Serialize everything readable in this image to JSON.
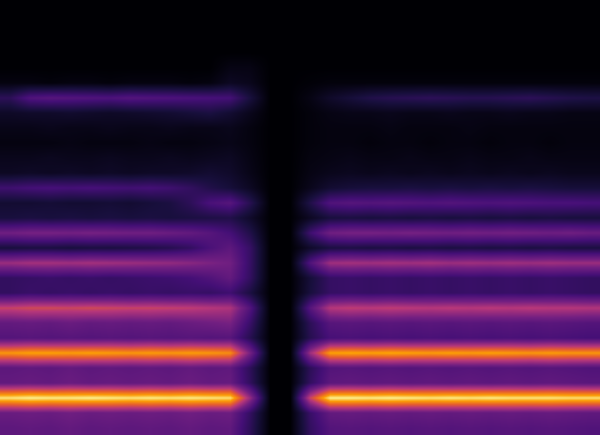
{
  "chart_data": {
    "type": "heatmap",
    "tick_labels": false,
    "color_range": [
      0,
      100
    ],
    "cells": [
      [
        0,
        0,
        0,
        0,
        0,
        0,
        0,
        0,
        0,
        0,
        0,
        0,
        0,
        0,
        0,
        0,
        0,
        0,
        0,
        0,
        0,
        0,
        0,
        0,
        0,
        0,
        0,
        0,
        0,
        0
      ],
      [
        0,
        0,
        0,
        0,
        0,
        0,
        0,
        0,
        0,
        0,
        0,
        0,
        0,
        0,
        0,
        0,
        0,
        0,
        0,
        0,
        0,
        0,
        0,
        0,
        0,
        0,
        0,
        0,
        0,
        0
      ],
      [
        0,
        0,
        0,
        0,
        0,
        0,
        0,
        0,
        0,
        0,
        0,
        0,
        0,
        0,
        0,
        0,
        0,
        0,
        0,
        0,
        0,
        0,
        0,
        0,
        0,
        0,
        0,
        0,
        0,
        0
      ],
      [
        0,
        0,
        0,
        0,
        0,
        0,
        0,
        0,
        0,
        0,
        0,
        0,
        0,
        0,
        0,
        0,
        0,
        0,
        0,
        0,
        0,
        0,
        0,
        0,
        0,
        0,
        0,
        0,
        0,
        0
      ],
      [
        0,
        0,
        0,
        0,
        0,
        0,
        0,
        0,
        0,
        0,
        0,
        4,
        4,
        0,
        0,
        0,
        0,
        0,
        0,
        0,
        0,
        0,
        0,
        0,
        0,
        0,
        0,
        0,
        0,
        0
      ],
      [
        3,
        3,
        2,
        3,
        3,
        2,
        3,
        3,
        3,
        2,
        3,
        8,
        6,
        0,
        0,
        1,
        2,
        2,
        2,
        2,
        2,
        2,
        2,
        2,
        2,
        2,
        2,
        2,
        2,
        2
      ],
      [
        22,
        34,
        36,
        35,
        34,
        33,
        35,
        34,
        33,
        32,
        31,
        30,
        15,
        0,
        0,
        4,
        10,
        14,
        18,
        20,
        21,
        22,
        21,
        20,
        20,
        21,
        22,
        20,
        18,
        17
      ],
      [
        9,
        10,
        10,
        11,
        10,
        9,
        10,
        11,
        12,
        14,
        16,
        12,
        6,
        0,
        0,
        2,
        4,
        5,
        5,
        6,
        5,
        5,
        6,
        5,
        5,
        6,
        5,
        5,
        4,
        4
      ],
      [
        5,
        5,
        6,
        5,
        5,
        6,
        5,
        5,
        6,
        5,
        5,
        6,
        3,
        0,
        0,
        2,
        3,
        3,
        3,
        4,
        3,
        3,
        3,
        4,
        3,
        3,
        3,
        3,
        3,
        3
      ],
      [
        3,
        3,
        3,
        4,
        3,
        3,
        3,
        4,
        3,
        3,
        4,
        5,
        3,
        0,
        0,
        2,
        3,
        3,
        2,
        3,
        3,
        2,
        3,
        3,
        2,
        3,
        3,
        2,
        3,
        3
      ],
      [
        6,
        6,
        7,
        6,
        6,
        7,
        6,
        6,
        7,
        6,
        7,
        8,
        4,
        0,
        0,
        3,
        4,
        5,
        4,
        4,
        5,
        4,
        4,
        5,
        4,
        4,
        5,
        4,
        4,
        4
      ],
      [
        8,
        9,
        8,
        9,
        8,
        9,
        8,
        9,
        9,
        10,
        12,
        10,
        5,
        0,
        0,
        4,
        6,
        7,
        6,
        7,
        6,
        7,
        6,
        7,
        6,
        7,
        6,
        7,
        6,
        6
      ],
      [
        28,
        30,
        31,
        30,
        31,
        30,
        29,
        30,
        28,
        24,
        18,
        14,
        8,
        0,
        0,
        6,
        12,
        14,
        15,
        15,
        16,
        15,
        16,
        15,
        16,
        15,
        16,
        15,
        14,
        14
      ],
      [
        12,
        12,
        13,
        12,
        12,
        13,
        12,
        14,
        16,
        22,
        32,
        36,
        20,
        0,
        0,
        18,
        34,
        36,
        35,
        36,
        35,
        34,
        35,
        34,
        33,
        34,
        33,
        32,
        32,
        31
      ],
      [
        15,
        16,
        15,
        16,
        15,
        16,
        15,
        16,
        15,
        16,
        17,
        18,
        10,
        0,
        0,
        8,
        15,
        16,
        15,
        16,
        15,
        16,
        15,
        16,
        15,
        16,
        15,
        16,
        15,
        15
      ],
      [
        44,
        46,
        46,
        45,
        46,
        45,
        44,
        44,
        42,
        40,
        36,
        30,
        18,
        0,
        0,
        28,
        44,
        46,
        46,
        45,
        46,
        45,
        44,
        45,
        44,
        45,
        44,
        43,
        44,
        42
      ],
      [
        15,
        16,
        16,
        15,
        16,
        16,
        17,
        18,
        20,
        24,
        32,
        38,
        25,
        0,
        0,
        10,
        16,
        17,
        16,
        17,
        16,
        17,
        16,
        17,
        16,
        17,
        16,
        17,
        16,
        16
      ],
      [
        54,
        56,
        56,
        55,
        56,
        55,
        54,
        53,
        52,
        50,
        47,
        44,
        25,
        0,
        0,
        34,
        55,
        56,
        55,
        56,
        55,
        56,
        54,
        55,
        54,
        55,
        54,
        55,
        54,
        54
      ],
      [
        24,
        25,
        26,
        25,
        26,
        25,
        26,
        27,
        28,
        30,
        34,
        40,
        24,
        0,
        0,
        14,
        25,
        26,
        25,
        26,
        25,
        26,
        25,
        26,
        25,
        26,
        25,
        26,
        25,
        24
      ],
      [
        24,
        26,
        25,
        26,
        25,
        26,
        25,
        26,
        25,
        26,
        25,
        28,
        16,
        0,
        0,
        15,
        25,
        26,
        25,
        26,
        25,
        26,
        25,
        26,
        25,
        26,
        25,
        26,
        25,
        24
      ],
      [
        64,
        66,
        66,
        65,
        66,
        65,
        64,
        64,
        63,
        62,
        60,
        58,
        34,
        0,
        0,
        36,
        60,
        62,
        61,
        62,
        61,
        60,
        61,
        60,
        61,
        60,
        61,
        60,
        60,
        59
      ],
      [
        40,
        41,
        40,
        42,
        40,
        41,
        40,
        41,
        40,
        42,
        44,
        46,
        26,
        0,
        0,
        22,
        36,
        37,
        36,
        37,
        36,
        37,
        36,
        37,
        36,
        37,
        36,
        37,
        36,
        35
      ],
      [
        35,
        36,
        35,
        36,
        35,
        36,
        35,
        36,
        35,
        36,
        35,
        36,
        20,
        0,
        0,
        20,
        31,
        32,
        31,
        32,
        31,
        32,
        31,
        32,
        31,
        32,
        31,
        32,
        31,
        30
      ],
      [
        84,
        86,
        86,
        85,
        86,
        85,
        84,
        85,
        84,
        85,
        84,
        82,
        45,
        0,
        0,
        55,
        86,
        87,
        86,
        87,
        86,
        85,
        86,
        85,
        86,
        85,
        84,
        85,
        84,
        84
      ],
      [
        38,
        39,
        38,
        40,
        38,
        39,
        38,
        39,
        38,
        40,
        38,
        39,
        22,
        0,
        0,
        22,
        35,
        36,
        35,
        36,
        35,
        36,
        35,
        36,
        35,
        36,
        35,
        36,
        35,
        34
      ],
      [
        40,
        41,
        40,
        42,
        40,
        41,
        40,
        41,
        40,
        42,
        40,
        41,
        23,
        0,
        0,
        24,
        38,
        39,
        38,
        39,
        38,
        39,
        38,
        39,
        38,
        39,
        38,
        39,
        38,
        37
      ],
      [
        96,
        98,
        97,
        97,
        98,
        97,
        96,
        97,
        96,
        97,
        96,
        95,
        52,
        0,
        0,
        65,
        98,
        98,
        97,
        98,
        97,
        96,
        97,
        96,
        97,
        96,
        96,
        96,
        95,
        95
      ],
      [
        42,
        43,
        42,
        44,
        42,
        43,
        42,
        43,
        42,
        44,
        42,
        43,
        24,
        0,
        0,
        26,
        40,
        41,
        40,
        41,
        40,
        41,
        40,
        41,
        40,
        41,
        40,
        41,
        40,
        39
      ],
      [
        38,
        39,
        38,
        40,
        38,
        39,
        38,
        39,
        38,
        40,
        38,
        39,
        22,
        0,
        0,
        24,
        35,
        36,
        35,
        36,
        35,
        36,
        35,
        36,
        35,
        36,
        35,
        36,
        35,
        34
      ]
    ]
  }
}
